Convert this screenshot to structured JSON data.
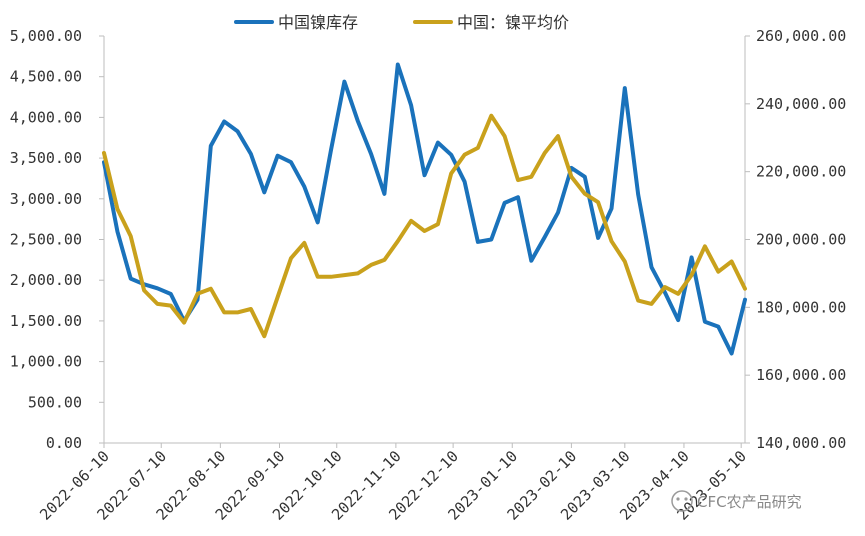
{
  "chart_data": {
    "type": "line",
    "legend": [
      "中国镍库存",
      "中国：镍平均价"
    ],
    "colors": {
      "inventory": "#1a72bb",
      "price": "#c9a11c"
    },
    "x_tick_labels": [
      "2022-06-10",
      "2022-07-10",
      "2022-08-10",
      "2022-09-10",
      "2022-10-10",
      "2022-11-10",
      "2022-12-10",
      "2023-01-10",
      "2023-02-10",
      "2023-03-10",
      "2023-04-10",
      "2023-05-10"
    ],
    "y_left": {
      "ylim": [
        0,
        5000
      ],
      "ticks": [
        "0.00",
        "500.00",
        "1,000.00",
        "1,500.00",
        "2,000.00",
        "2,500.00",
        "3,000.00",
        "3,500.00",
        "4,000.00",
        "4,500.00",
        "5,000.00"
      ]
    },
    "y_right": {
      "ylim": [
        140000,
        260000
      ],
      "ticks": [
        "140,000.00",
        "160,000.00",
        "180,000.00",
        "200,000.00",
        "220,000.00",
        "240,000.00",
        "260,000.00"
      ]
    },
    "series": [
      {
        "name": "中国镍库存",
        "axis": "left",
        "color": "#1a72bb",
        "points": [
          [
            "2022-06-10",
            3450
          ],
          [
            "2022-06-17",
            2600
          ],
          [
            "2022-06-24",
            2020
          ],
          [
            "2022-07-01",
            1950
          ],
          [
            "2022-07-08",
            1900
          ],
          [
            "2022-07-15",
            1830
          ],
          [
            "2022-07-22",
            1500
          ],
          [
            "2022-07-29",
            1760
          ],
          [
            "2022-08-05",
            3650
          ],
          [
            "2022-08-12",
            3950
          ],
          [
            "2022-08-19",
            3830
          ],
          [
            "2022-08-26",
            3550
          ],
          [
            "2022-09-02",
            3080
          ],
          [
            "2022-09-09",
            3530
          ],
          [
            "2022-09-16",
            3450
          ],
          [
            "2022-09-23",
            3150
          ],
          [
            "2022-09-30",
            2710
          ],
          [
            "2022-10-07",
            3600
          ],
          [
            "2022-10-14",
            4440
          ],
          [
            "2022-10-21",
            3960
          ],
          [
            "2022-10-28",
            3550
          ],
          [
            "2022-11-04",
            3060
          ],
          [
            "2022-11-11",
            4650
          ],
          [
            "2022-11-18",
            4150
          ],
          [
            "2022-11-25",
            3290
          ],
          [
            "2022-12-02",
            3690
          ],
          [
            "2022-12-09",
            3540
          ],
          [
            "2022-12-16",
            3210
          ],
          [
            "2022-12-23",
            2470
          ],
          [
            "2022-12-30",
            2500
          ],
          [
            "2023-01-06",
            2950
          ],
          [
            "2023-01-13",
            3020
          ],
          [
            "2023-01-20",
            2240
          ],
          [
            "2023-01-27",
            2530
          ],
          [
            "2023-02-03",
            2830
          ],
          [
            "2023-02-10",
            3380
          ],
          [
            "2023-02-17",
            3270
          ],
          [
            "2023-02-24",
            2520
          ],
          [
            "2023-03-03",
            2880
          ],
          [
            "2023-03-10",
            4360
          ],
          [
            "2023-03-17",
            3050
          ],
          [
            "2023-03-24",
            2160
          ],
          [
            "2023-03-31",
            1850
          ],
          [
            "2023-04-07",
            1510
          ],
          [
            "2023-04-14",
            2280
          ],
          [
            "2023-04-21",
            1490
          ],
          [
            "2023-04-28",
            1430
          ],
          [
            "2023-05-05",
            1100
          ],
          [
            "2023-05-12",
            1760
          ]
        ]
      },
      {
        "name": "中国：镍平均价",
        "axis": "right",
        "color": "#c9a11c",
        "points": [
          [
            "2022-06-10",
            225500
          ],
          [
            "2022-06-17",
            209000
          ],
          [
            "2022-06-24",
            201000
          ],
          [
            "2022-07-01",
            185000
          ],
          [
            "2022-07-08",
            181000
          ],
          [
            "2022-07-15",
            180500
          ],
          [
            "2022-07-22",
            175500
          ],
          [
            "2022-07-29",
            184000
          ],
          [
            "2022-08-05",
            185500
          ],
          [
            "2022-08-12",
            178500
          ],
          [
            "2022-08-19",
            178500
          ],
          [
            "2022-08-26",
            179500
          ],
          [
            "2022-09-02",
            171500
          ],
          [
            "2022-09-09",
            183000
          ],
          [
            "2022-09-16",
            194500
          ],
          [
            "2022-09-23",
            199000
          ],
          [
            "2022-09-30",
            189000
          ],
          [
            "2022-10-07",
            189000
          ],
          [
            "2022-10-14",
            189500
          ],
          [
            "2022-10-21",
            190000
          ],
          [
            "2022-10-28",
            192500
          ],
          [
            "2022-11-04",
            194000
          ],
          [
            "2022-11-11",
            199500
          ],
          [
            "2022-11-18",
            205500
          ],
          [
            "2022-11-25",
            202500
          ],
          [
            "2022-12-02",
            204500
          ],
          [
            "2022-12-09",
            219500
          ],
          [
            "2022-12-16",
            225000
          ],
          [
            "2022-12-23",
            227000
          ],
          [
            "2022-12-30",
            236500
          ],
          [
            "2023-01-06",
            230500
          ],
          [
            "2023-01-13",
            217500
          ],
          [
            "2023-01-20",
            218500
          ],
          [
            "2023-01-27",
            225500
          ],
          [
            "2023-02-03",
            230500
          ],
          [
            "2023-02-10",
            218500
          ],
          [
            "2023-02-17",
            213500
          ],
          [
            "2023-02-24",
            211000
          ],
          [
            "2023-03-03",
            199500
          ],
          [
            "2023-03-10",
            193500
          ],
          [
            "2023-03-17",
            182000
          ],
          [
            "2023-03-24",
            181000
          ],
          [
            "2023-03-31",
            186000
          ],
          [
            "2023-04-07",
            184000
          ],
          [
            "2023-04-14",
            189500
          ],
          [
            "2023-04-21",
            198000
          ],
          [
            "2023-04-28",
            190500
          ],
          [
            "2023-05-05",
            193500
          ],
          [
            "2023-05-12",
            185500
          ]
        ]
      }
    ]
  },
  "watermark": "CFC农产品研究"
}
